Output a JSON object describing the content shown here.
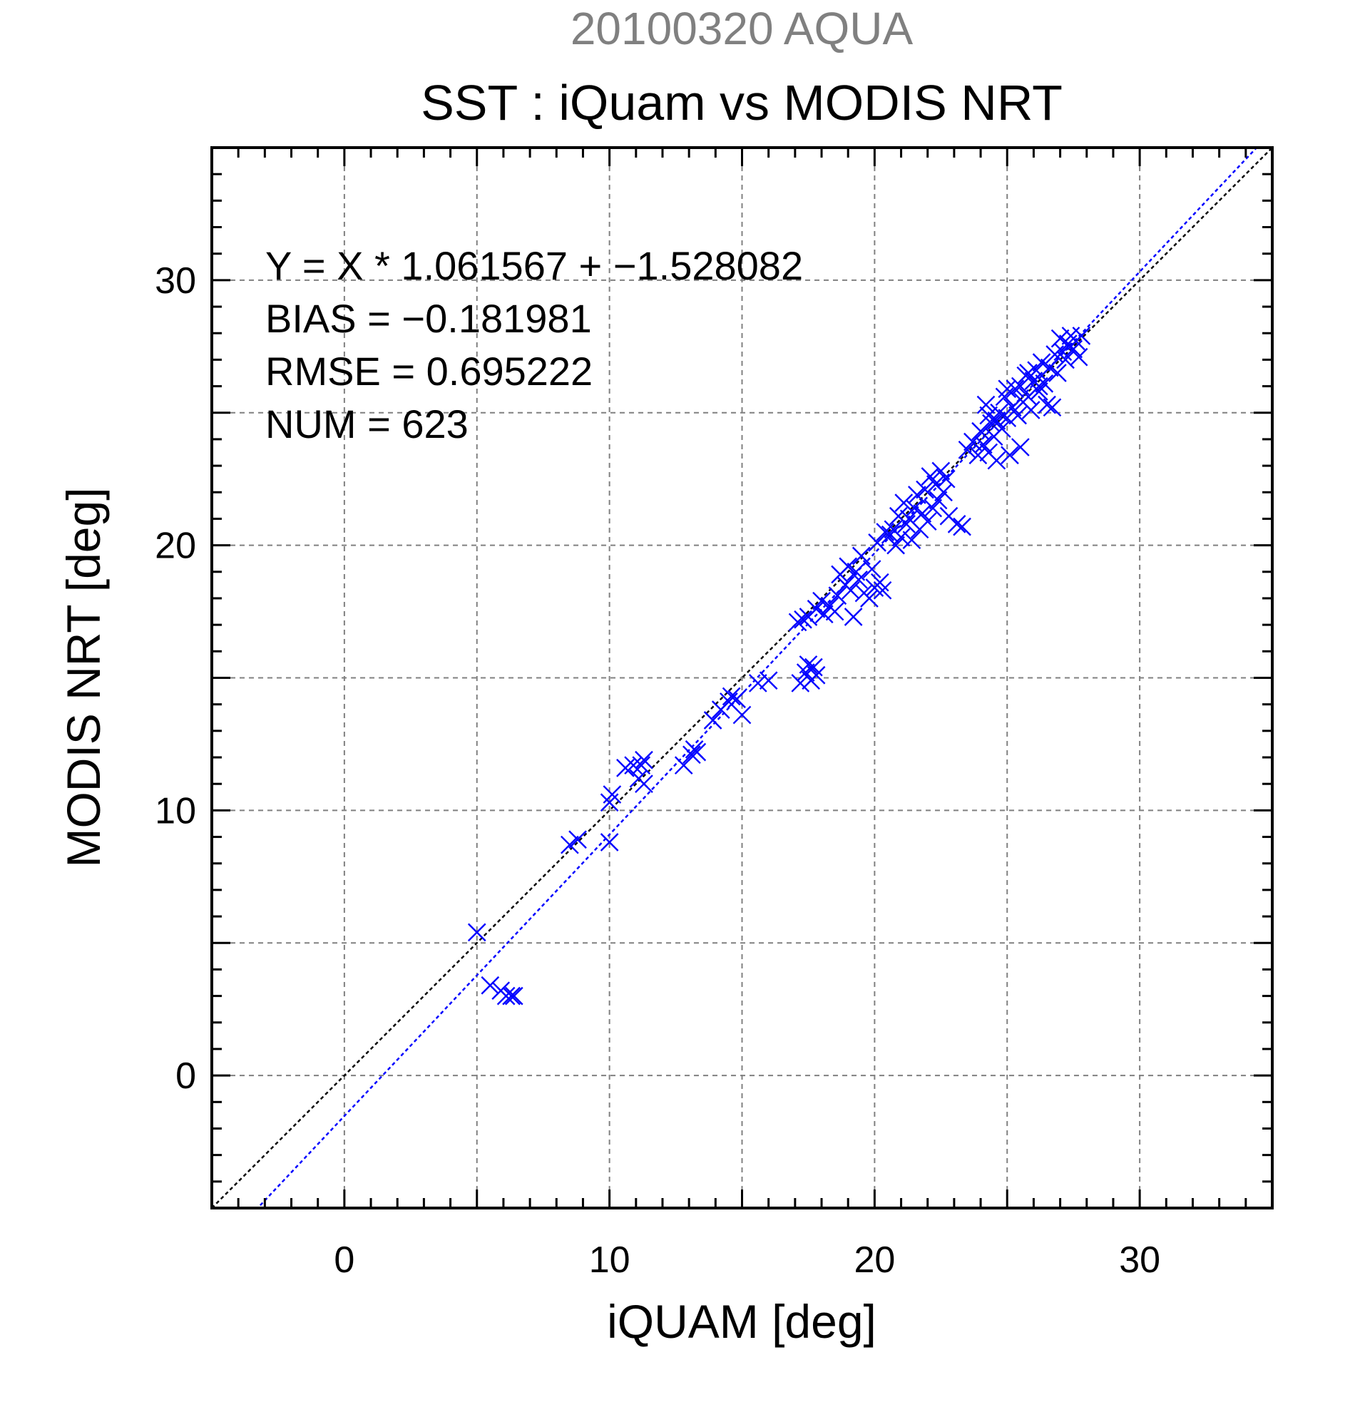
{
  "chart_data": {
    "type": "scatter",
    "supertitle": "20100320 AQUA",
    "title": "SST : iQuam vs MODIS NRT",
    "xlabel": "iQUAM [deg]",
    "ylabel": "MODIS NRT [deg]",
    "xlim": [
      -5,
      35
    ],
    "ylim": [
      -5,
      35
    ],
    "xticks": [
      0,
      10,
      20,
      30
    ],
    "yticks": [
      0,
      10,
      20,
      30
    ],
    "grid": true,
    "marker": "x",
    "colors": {
      "points": "#0000ff",
      "fit_line": "#0000ff",
      "identity_line": "#000000",
      "grid": "#808080"
    },
    "stats": [
      "Y = X * 1.061567 + −1.528082",
      "BIAS = −0.181981",
      "RMSE = 0.695222",
      "NUM = 623"
    ],
    "fit": {
      "slope": 1.061567,
      "intercept": -1.528082
    },
    "identity": {
      "slope": 1,
      "intercept": 0
    },
    "points": [
      [
        5.0,
        5.4
      ],
      [
        5.5,
        3.4
      ],
      [
        5.9,
        3.2
      ],
      [
        6.1,
        3.0
      ],
      [
        6.3,
        3.0
      ],
      [
        6.4,
        3.0
      ],
      [
        8.5,
        8.7
      ],
      [
        8.8,
        8.9
      ],
      [
        10.0,
        8.8
      ],
      [
        10.0,
        10.3
      ],
      [
        10.1,
        10.6
      ],
      [
        10.6,
        11.6
      ],
      [
        10.9,
        11.7
      ],
      [
        11.1,
        11.2
      ],
      [
        11.2,
        11.7
      ],
      [
        11.3,
        11.0
      ],
      [
        11.3,
        11.9
      ],
      [
        12.8,
        11.7
      ],
      [
        13.1,
        12.1
      ],
      [
        13.2,
        12.3
      ],
      [
        13.3,
        12.2
      ],
      [
        13.9,
        13.4
      ],
      [
        14.2,
        13.8
      ],
      [
        14.5,
        14.1
      ],
      [
        14.6,
        14.3
      ],
      [
        14.8,
        14.2
      ],
      [
        15.0,
        13.6
      ],
      [
        15.6,
        14.8
      ],
      [
        16.0,
        14.9
      ],
      [
        17.2,
        14.8
      ],
      [
        17.4,
        15.2
      ],
      [
        17.5,
        15.5
      ],
      [
        17.6,
        14.9
      ],
      [
        17.7,
        15.4
      ],
      [
        17.8,
        15.1
      ],
      [
        17.1,
        17.1
      ],
      [
        17.3,
        17.2
      ],
      [
        17.5,
        17.3
      ],
      [
        17.8,
        17.6
      ],
      [
        18.0,
        17.9
      ],
      [
        18.1,
        17.4
      ],
      [
        18.3,
        17.7
      ],
      [
        18.5,
        17.5
      ],
      [
        18.6,
        18.1
      ],
      [
        18.7,
        18.9
      ],
      [
        18.9,
        18.5
      ],
      [
        19.0,
        19.2
      ],
      [
        19.1,
        18.3
      ],
      [
        19.2,
        17.3
      ],
      [
        19.3,
        19.0
      ],
      [
        19.4,
        18.7
      ],
      [
        19.5,
        19.6
      ],
      [
        19.6,
        18.2
      ],
      [
        19.8,
        18.0
      ],
      [
        19.9,
        19.1
      ],
      [
        20.0,
        18.4
      ],
      [
        20.1,
        20.1
      ],
      [
        20.2,
        18.6
      ],
      [
        20.3,
        18.3
      ],
      [
        20.4,
        20.5
      ],
      [
        20.6,
        20.4
      ],
      [
        20.7,
        20.6
      ],
      [
        20.8,
        20.0
      ],
      [
        20.9,
        21.1
      ],
      [
        21.0,
        20.3
      ],
      [
        21.1,
        21.6
      ],
      [
        21.2,
        20.8
      ],
      [
        21.3,
        21.0
      ],
      [
        21.4,
        20.2
      ],
      [
        21.5,
        21.4
      ],
      [
        21.6,
        21.9
      ],
      [
        21.7,
        20.6
      ],
      [
        21.8,
        21.2
      ],
      [
        21.9,
        22.1
      ],
      [
        22.0,
        20.9
      ],
      [
        22.1,
        22.6
      ],
      [
        22.2,
        21.4
      ],
      [
        22.3,
        22.3
      ],
      [
        22.4,
        21.7
      ],
      [
        22.5,
        22.8
      ],
      [
        22.6,
        22.0
      ],
      [
        22.7,
        22.5
      ],
      [
        22.8,
        21.1
      ],
      [
        23.1,
        20.8
      ],
      [
        23.3,
        20.7
      ],
      [
        23.5,
        23.6
      ],
      [
        23.7,
        23.9
      ],
      [
        23.9,
        23.4
      ],
      [
        24.0,
        24.3
      ],
      [
        24.1,
        23.8
      ],
      [
        24.2,
        25.3
      ],
      [
        24.3,
        23.5
      ],
      [
        24.4,
        24.6
      ],
      [
        24.5,
        24.1
      ],
      [
        24.6,
        23.2
      ],
      [
        24.7,
        25.0
      ],
      [
        24.8,
        24.4
      ],
      [
        24.9,
        25.6
      ],
      [
        25.0,
        24.8
      ],
      [
        25.1,
        23.4
      ],
      [
        25.2,
        25.2
      ],
      [
        25.3,
        25.9
      ],
      [
        25.4,
        24.9
      ],
      [
        25.5,
        26.0
      ],
      [
        25.6,
        25.4
      ],
      [
        25.7,
        26.4
      ],
      [
        25.8,
        25.6
      ],
      [
        25.9,
        25.1
      ],
      [
        26.0,
        26.2
      ],
      [
        26.1,
        26.6
      ],
      [
        26.2,
        25.8
      ],
      [
        26.3,
        26.9
      ],
      [
        26.4,
        26.1
      ],
      [
        26.5,
        25.3
      ],
      [
        26.6,
        26.7
      ],
      [
        26.7,
        25.2
      ],
      [
        26.8,
        27.2
      ],
      [
        26.9,
        26.5
      ],
      [
        27.0,
        27.8
      ],
      [
        27.1,
        27.3
      ],
      [
        27.2,
        27.0
      ],
      [
        27.3,
        27.6
      ],
      [
        27.4,
        27.9
      ],
      [
        27.5,
        27.4
      ],
      [
        27.6,
        27.7
      ],
      [
        27.7,
        27.1
      ],
      [
        27.8,
        27.9
      ],
      [
        25.5,
        23.7
      ],
      [
        24.3,
        24.9
      ],
      [
        26.2,
        26.0
      ],
      [
        25.0,
        25.9
      ],
      [
        24.6,
        24.7
      ],
      [
        25.8,
        26.5
      ]
    ]
  }
}
